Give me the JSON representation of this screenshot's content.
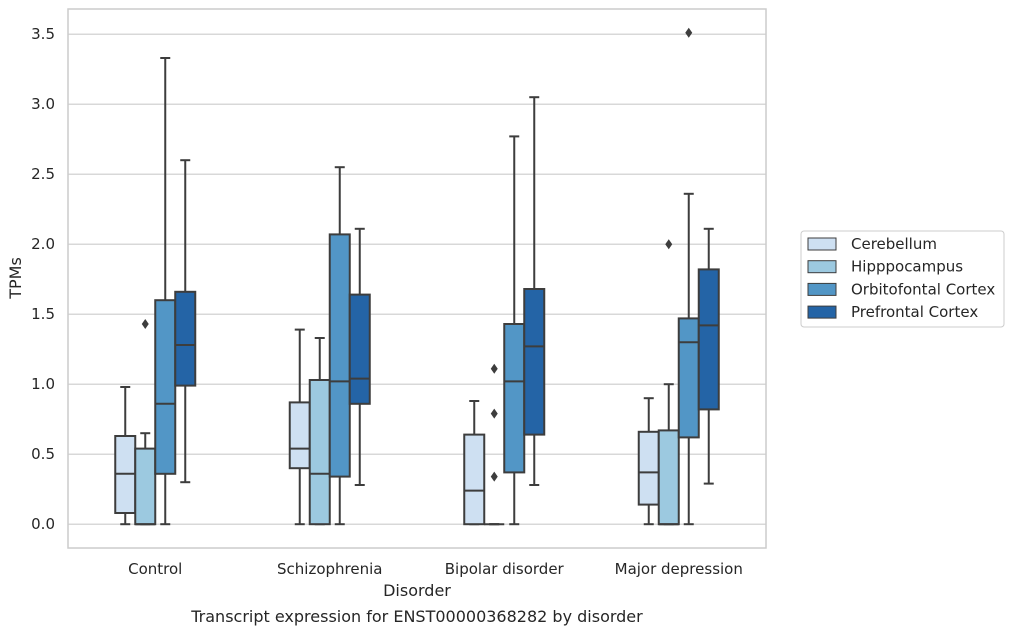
{
  "caption": "Transcript expression for ENST00000368282 by disorder",
  "chart_data": {
    "type": "boxplot",
    "xlabel": "Disorder",
    "ylabel": "TPMs",
    "ylim": [
      -0.17,
      3.68
    ],
    "yticks": [
      "0.0",
      "0.5",
      "1.0",
      "1.5",
      "2.0",
      "2.5",
      "3.0",
      "3.5"
    ],
    "categories": [
      "Control",
      "Schizophrenia",
      "Bipolar disorder",
      "Major depression"
    ],
    "grid": "horizontal",
    "legend_position": "right",
    "series": [
      {
        "name": "Cerebellum",
        "color": "#cee0f2",
        "boxes": [
          {
            "whislo": 0.0,
            "q1": 0.08,
            "med": 0.36,
            "q3": 0.63,
            "whishi": 0.98,
            "fliers": []
          },
          {
            "whislo": 0.0,
            "q1": 0.4,
            "med": 0.54,
            "q3": 0.87,
            "whishi": 1.39,
            "fliers": []
          },
          {
            "whislo": 0.0,
            "q1": 0.0,
            "med": 0.24,
            "q3": 0.64,
            "whishi": 0.88,
            "fliers": []
          },
          {
            "whislo": 0.0,
            "q1": 0.14,
            "med": 0.37,
            "q3": 0.66,
            "whishi": 0.9,
            "fliers": []
          }
        ]
      },
      {
        "name": "Hipppocampus",
        "color": "#9cc9e0",
        "boxes": [
          {
            "whislo": 0.0,
            "q1": 0.0,
            "med": 0.0,
            "q3": 0.54,
            "whishi": 0.65,
            "fliers": [
              1.43
            ]
          },
          {
            "whislo": 0.0,
            "q1": 0.0,
            "med": 0.36,
            "q3": 1.03,
            "whishi": 1.33,
            "fliers": []
          },
          {
            "whislo": 0.0,
            "q1": 0.0,
            "med": 0.0,
            "q3": 0.0,
            "whishi": 0.0,
            "fliers": [
              0.34,
              0.79,
              1.11
            ]
          },
          {
            "whislo": 0.0,
            "q1": 0.0,
            "med": 0.0,
            "q3": 0.67,
            "whishi": 1.0,
            "fliers": [
              2.0
            ]
          }
        ]
      },
      {
        "name": "Orbitofontal Cortex",
        "color": "#5296c6",
        "boxes": [
          {
            "whislo": 0.0,
            "q1": 0.36,
            "med": 0.86,
            "q3": 1.6,
            "whishi": 3.33,
            "fliers": []
          },
          {
            "whislo": 0.0,
            "q1": 0.34,
            "med": 1.02,
            "q3": 2.07,
            "whishi": 2.55,
            "fliers": []
          },
          {
            "whislo": 0.0,
            "q1": 0.37,
            "med": 1.02,
            "q3": 1.43,
            "whishi": 2.77,
            "fliers": []
          },
          {
            "whislo": 0.0,
            "q1": 0.62,
            "med": 1.3,
            "q3": 1.47,
            "whishi": 2.36,
            "fliers": [
              3.51
            ]
          }
        ]
      },
      {
        "name": "Prefrontal Cortex",
        "color": "#2464a6",
        "boxes": [
          {
            "whislo": 0.3,
            "q1": 0.99,
            "med": 1.28,
            "q3": 1.66,
            "whishi": 2.6,
            "fliers": []
          },
          {
            "whislo": 0.28,
            "q1": 0.86,
            "med": 1.04,
            "q3": 1.64,
            "whishi": 2.11,
            "fliers": []
          },
          {
            "whislo": 0.28,
            "q1": 0.64,
            "med": 1.27,
            "q3": 1.68,
            "whishi": 3.05,
            "fliers": []
          },
          {
            "whislo": 0.29,
            "q1": 0.82,
            "med": 1.42,
            "q3": 1.82,
            "whishi": 2.11,
            "fliers": []
          }
        ]
      }
    ]
  }
}
